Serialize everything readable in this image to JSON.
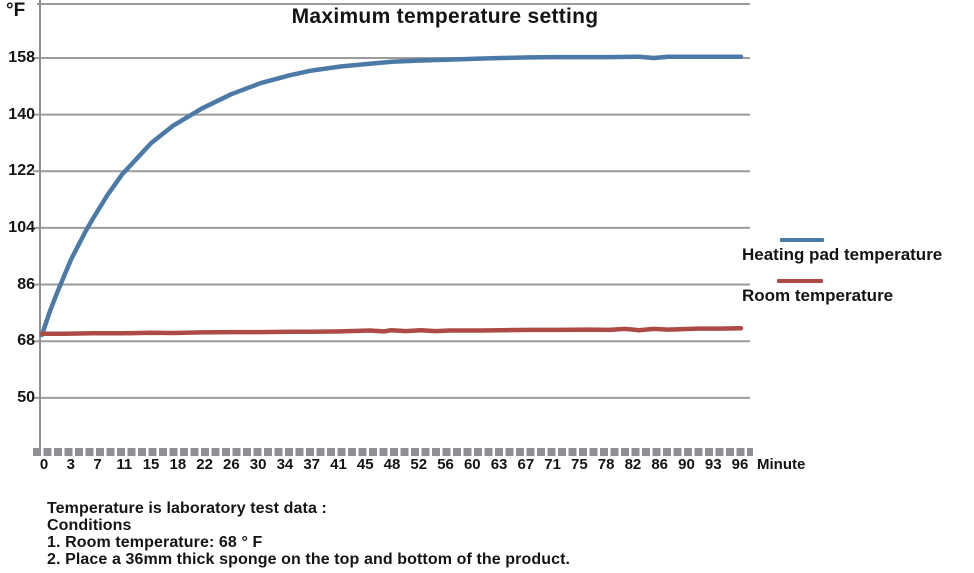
{
  "chart_data": {
    "type": "line",
    "title": "Maximum temperature setting",
    "y_unit_label": "°F",
    "x_axis_suffix_label": "Minute",
    "y_ticks": [
      158,
      140,
      122,
      104,
      86,
      68,
      50
    ],
    "x_tick_labels": [
      "0",
      "3",
      "7",
      "11",
      "15",
      "18",
      "22",
      "26",
      "30",
      "34",
      "37",
      "41",
      "45",
      "48",
      "52",
      "56",
      "60",
      "63",
      "67",
      "71",
      "75",
      "78",
      "82",
      "86",
      "90",
      "93",
      "96"
    ],
    "xlim": [
      0,
      96
    ],
    "ylim": [
      33,
      176
    ],
    "grid": true,
    "legend_position": "right",
    "series": [
      {
        "name": "Heating pad temperature",
        "color": "#4c7aa7",
        "x": [
          0,
          1,
          2,
          3,
          4,
          5,
          6,
          7,
          9,
          11,
          13,
          15,
          18,
          22,
          26,
          30,
          34,
          37,
          41,
          45,
          48,
          52,
          56,
          60,
          63,
          67,
          71,
          75,
          78,
          82,
          84,
          86,
          90,
          93,
          96
        ],
        "values": [
          70,
          77,
          83,
          88.5,
          94,
          98.5,
          103,
          107,
          114.5,
          121,
          126,
          131,
          136.5,
          142,
          146.5,
          150,
          152.5,
          154,
          155.3,
          156.2,
          156.8,
          157.2,
          157.5,
          157.8,
          158,
          158.2,
          158.3,
          158.3,
          158.3,
          158.4,
          158.0,
          158.4,
          158.4,
          158.4,
          158.4
        ]
      },
      {
        "name": "Room temperature",
        "color": "#ad4a45",
        "x": [
          0,
          3,
          7,
          11,
          15,
          18,
          22,
          26,
          30,
          34,
          37,
          41,
          45,
          47,
          48,
          50,
          52,
          54,
          56,
          60,
          63,
          67,
          71,
          75,
          78,
          80,
          82,
          84,
          86,
          90,
          93,
          96
        ],
        "values": [
          70.4,
          70.4,
          70.5,
          70.5,
          70.7,
          70.6,
          70.8,
          70.9,
          70.9,
          71.0,
          71.0,
          71.1,
          71.4,
          71.1,
          71.5,
          71.2,
          71.5,
          71.2,
          71.4,
          71.4,
          71.5,
          71.6,
          71.6,
          71.7,
          71.6,
          71.9,
          71.5,
          71.9,
          71.7,
          72.0,
          72.0,
          72.1
        ]
      }
    ]
  },
  "footer": {
    "lines": [
      "Temperature is laboratory test data :",
      "Conditions",
      "1. Room temperature: 68 ° F",
      "2. Place a 36mm thick sponge on the top and bottom of the product."
    ]
  },
  "colors": {
    "grid": "#9b9b9b",
    "axis": "#8f8f93",
    "tick_band": "#8f8f93",
    "text": "#141414",
    "background": "#ffffff"
  }
}
